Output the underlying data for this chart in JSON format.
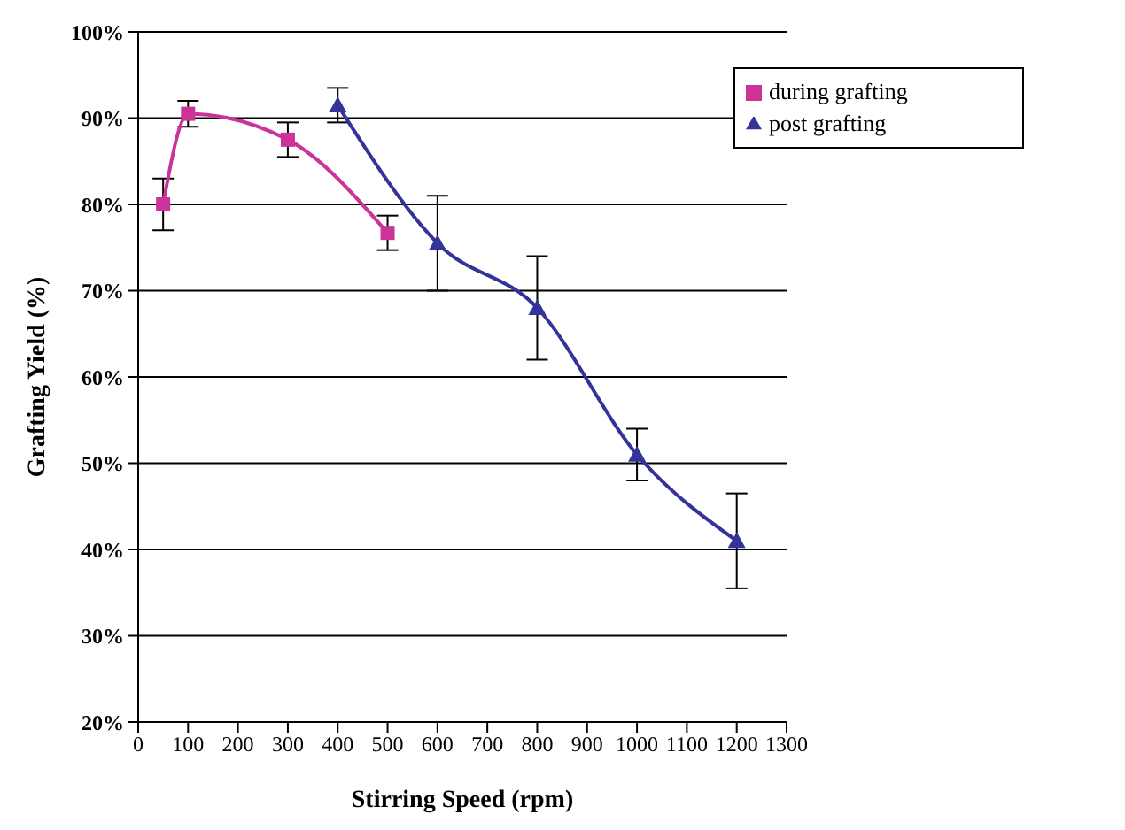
{
  "chart_data": {
    "type": "line",
    "xlabel": "Stirring Speed (rpm)",
    "ylabel": "Grafting Yield (%)",
    "series": [
      {
        "name": "during grafting",
        "color": "#cc3399",
        "marker": "square",
        "x": [
          50,
          100,
          300,
          500
        ],
        "values": [
          80,
          90.5,
          87.5,
          76.7
        ],
        "errors": [
          3,
          1.5,
          2,
          2
        ]
      },
      {
        "name": "post grafting",
        "color": "#333399",
        "marker": "triangle",
        "x": [
          400,
          600,
          800,
          1000,
          1200
        ],
        "values": [
          91.5,
          75.5,
          68,
          51,
          41
        ],
        "errors": [
          2,
          5.5,
          6,
          3,
          5.5
        ]
      }
    ],
    "xlim": [
      0,
      1300
    ],
    "xticks": [
      0,
      100,
      200,
      300,
      400,
      500,
      600,
      700,
      800,
      900,
      1000,
      1100,
      1200,
      1300
    ],
    "ylim": [
      20,
      100
    ],
    "yticks": [
      {
        "value": 20,
        "label": "20%"
      },
      {
        "value": 30,
        "label": "30%"
      },
      {
        "value": 40,
        "label": "40%"
      },
      {
        "value": 50,
        "label": "50%"
      },
      {
        "value": 60,
        "label": "60%"
      },
      {
        "value": 70,
        "label": "70%"
      },
      {
        "value": 80,
        "label": "80%"
      },
      {
        "value": 90,
        "label": "90%"
      },
      {
        "value": 100,
        "label": "100%"
      }
    ],
    "grid": "y",
    "legend": "top right",
    "line_style": "solid"
  }
}
